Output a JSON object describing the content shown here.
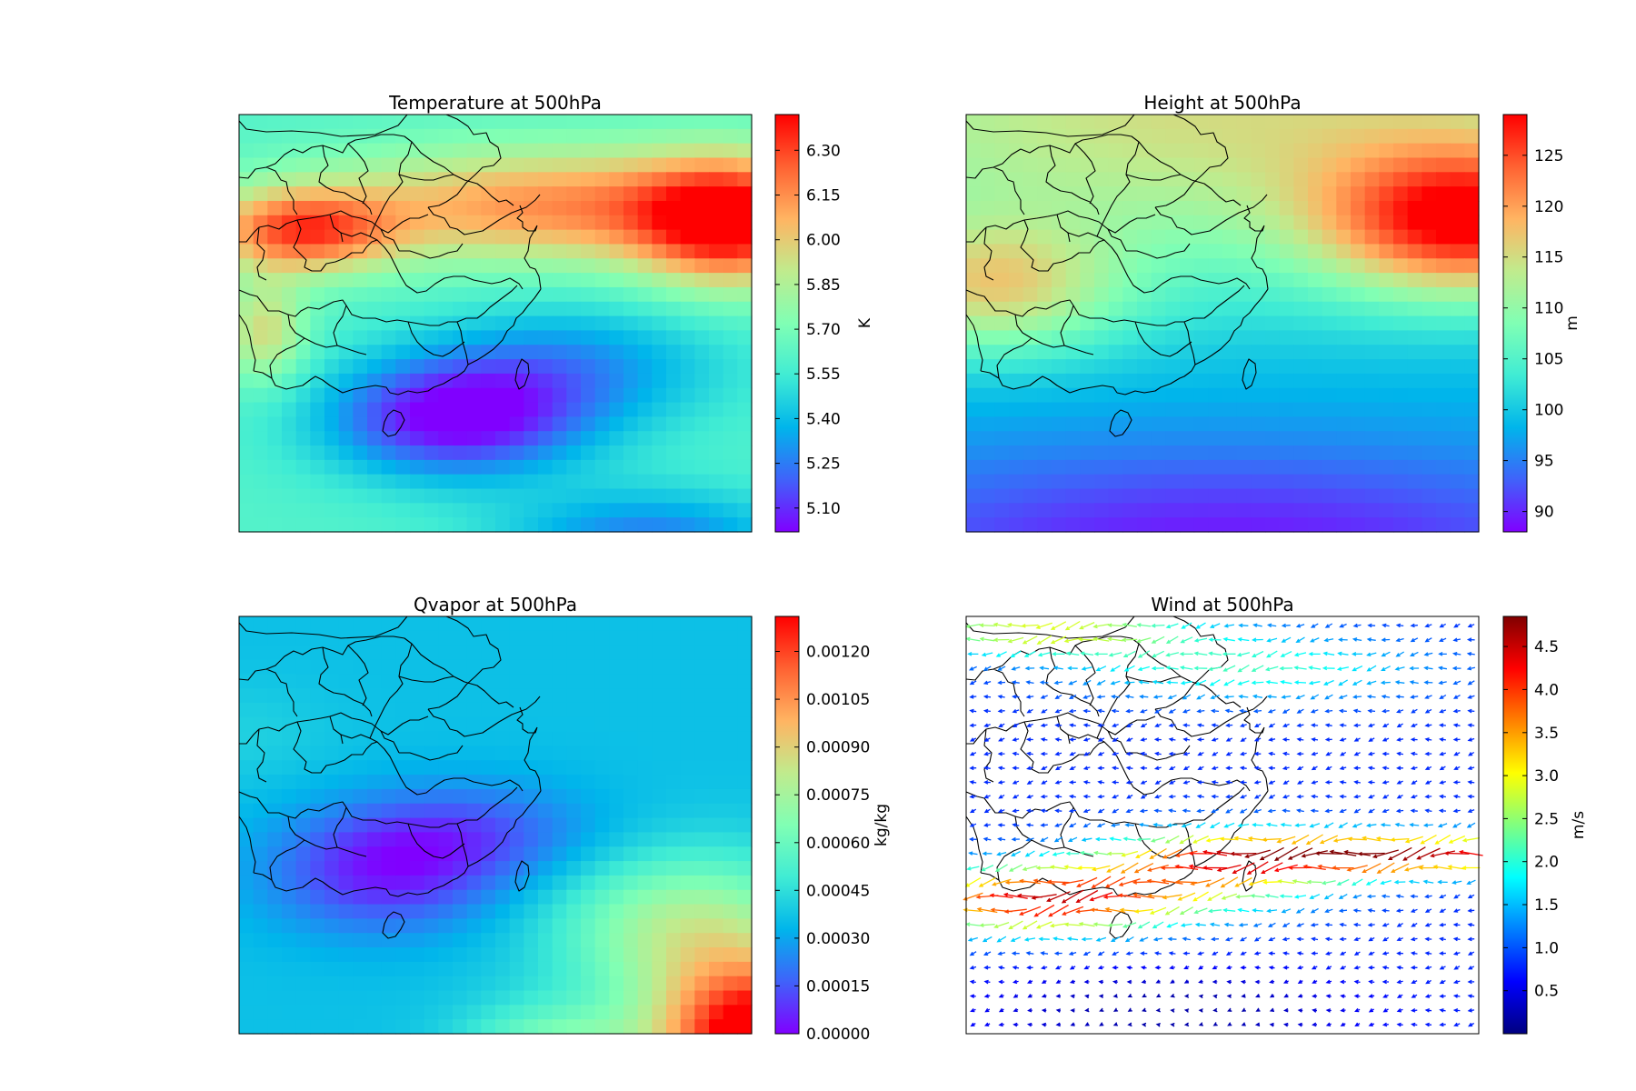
{
  "colors": {
    "rainbow": [
      "#8000ff",
      "#4062fa",
      "#00b5eb",
      "#40ecd4",
      "#80ffb4",
      "#c0eb8d",
      "#ffb462",
      "#ff6232",
      "#ff0000"
    ],
    "jet": [
      "#000080",
      "#0000ff",
      "#0080ff",
      "#00ffff",
      "#80ff80",
      "#ffff00",
      "#ff8000",
      "#ff0000",
      "#800000"
    ],
    "map_border": "#000000"
  },
  "chart_data": [
    {
      "type": "heatmap",
      "title": "Temperature at 500hPa",
      "colorbar": {
        "label": "K",
        "range": [
          5.02,
          6.42
        ],
        "ticks": [
          "5.10",
          "5.25",
          "5.40",
          "5.55",
          "5.70",
          "5.85",
          "6.00",
          "6.15",
          "6.30"
        ],
        "colormap": "rainbow"
      },
      "field": {
        "nx": 36,
        "ny": 29,
        "base": 5.6,
        "components": [
          {
            "amp": 0.72,
            "cx": 0.96,
            "cy": 0.26,
            "sx": 0.18,
            "sy": 0.15
          },
          {
            "amp": 0.55,
            "cx": 0.62,
            "cy": 0.22,
            "sx": 0.45,
            "sy": 0.14
          },
          {
            "amp": 0.62,
            "cx": 0.12,
            "cy": 0.28,
            "sx": 0.18,
            "sy": 0.1
          },
          {
            "amp": -0.58,
            "cx": 0.42,
            "cy": 0.73,
            "sx": 0.25,
            "sy": 0.14
          },
          {
            "amp": -0.35,
            "cx": 0.8,
            "cy": 1.02,
            "sx": 0.28,
            "sy": 0.12
          },
          {
            "amp": -0.28,
            "cx": 0.65,
            "cy": 0.6,
            "sx": 0.3,
            "sy": 0.15
          },
          {
            "amp": 0.35,
            "cx": 0.05,
            "cy": 0.52,
            "sx": 0.08,
            "sy": 0.12
          }
        ]
      },
      "grid": false,
      "legend": "colorbar-right"
    },
    {
      "type": "heatmap",
      "title": "Height at 500hPa",
      "colorbar": {
        "label": "m",
        "range": [
          88,
          129
        ],
        "ticks": [
          "90",
          "95",
          "100",
          "105",
          "110",
          "115",
          "120",
          "125"
        ],
        "colormap": "rainbow"
      },
      "field": {
        "nx": 36,
        "ny": 29,
        "base": 98,
        "components": [
          {
            "amp": 17,
            "cx": 0.5,
            "cy": 0.0,
            "sx": 1.2,
            "sy": 0.4
          },
          {
            "amp": 24,
            "cx": 0.98,
            "cy": 0.26,
            "sx": 0.28,
            "sy": 0.17
          },
          {
            "amp": 14,
            "cx": 0.05,
            "cy": 0.42,
            "sx": 0.25,
            "sy": 0.16
          },
          {
            "amp": -9,
            "cx": 0.5,
            "cy": 1.05,
            "sx": 0.8,
            "sy": 0.25
          }
        ]
      },
      "grid": false,
      "legend": "colorbar-right"
    },
    {
      "type": "heatmap",
      "title": "Qvapor at 500hPa",
      "colorbar": {
        "label": "kg/kg",
        "range": [
          0.0,
          0.00131
        ],
        "ticks": [
          "0.00000",
          "0.00015",
          "0.00030",
          "0.00045",
          "0.00060",
          "0.00075",
          "0.00090",
          "0.00105",
          "0.00120"
        ],
        "colormap": "rainbow"
      },
      "field": {
        "nx": 36,
        "ny": 29,
        "base": 0.00036,
        "components": [
          {
            "amp": 0.0011,
            "cx": 1.02,
            "cy": 1.02,
            "sx": 0.2,
            "sy": 0.18
          },
          {
            "amp": 0.00042,
            "cx": 0.88,
            "cy": 0.75,
            "sx": 0.25,
            "sy": 0.18
          },
          {
            "amp": 0.00032,
            "cx": 0.62,
            "cy": 1.05,
            "sx": 0.18,
            "sy": 0.12
          },
          {
            "amp": -0.00028,
            "cx": 0.28,
            "cy": 0.62,
            "sx": 0.22,
            "sy": 0.14
          },
          {
            "amp": -0.0002,
            "cx": 0.45,
            "cy": 0.52,
            "sx": 0.25,
            "sy": 0.12
          },
          {
            "amp": 5e-05,
            "cx": 0.0,
            "cy": 0.28,
            "sx": 0.18,
            "sy": 0.12
          }
        ]
      },
      "grid": false,
      "legend": "colorbar-right"
    },
    {
      "type": "quiver",
      "title": "Wind at 500hPa",
      "colorbar": {
        "label": "m/s",
        "range": [
          0.0,
          4.85
        ],
        "ticks": [
          "0.5",
          "1.0",
          "1.5",
          "2.0",
          "2.5",
          "3.0",
          "3.5",
          "4.0",
          "4.5"
        ],
        "colormap": "jet"
      },
      "field": {
        "nx": 36,
        "ny": 29,
        "base": 0.8,
        "components": [
          {
            "amp": 3.7,
            "cx": 0.88,
            "cy": 0.57,
            "sx": 0.4,
            "sy": 0.05
          },
          {
            "amp": 3.6,
            "cx": 0.15,
            "cy": 0.68,
            "sx": 0.28,
            "sy": 0.08
          },
          {
            "amp": 2.3,
            "cx": 0.5,
            "cy": 0.6,
            "sx": 0.25,
            "sy": 0.09
          },
          {
            "amp": 2.1,
            "cx": 0.15,
            "cy": 0.03,
            "sx": 0.3,
            "sy": 0.06
          },
          {
            "amp": 1.3,
            "cx": 0.55,
            "cy": 0.12,
            "sx": 0.35,
            "sy": 0.08
          },
          {
            "amp": -0.7,
            "cx": 0.4,
            "cy": 0.95,
            "sx": 0.35,
            "sy": 0.1
          }
        ]
      },
      "direction": "westward",
      "grid": false,
      "legend": "colorbar-right"
    }
  ]
}
